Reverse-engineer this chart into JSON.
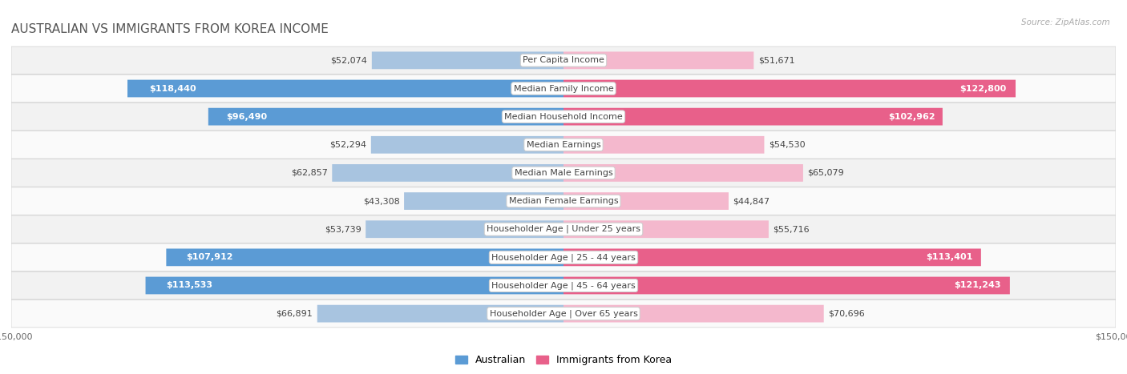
{
  "title": "AUSTRALIAN VS IMMIGRANTS FROM KOREA INCOME",
  "source": "Source: ZipAtlas.com",
  "categories": [
    "Per Capita Income",
    "Median Family Income",
    "Median Household Income",
    "Median Earnings",
    "Median Male Earnings",
    "Median Female Earnings",
    "Householder Age | Under 25 years",
    "Householder Age | 25 - 44 years",
    "Householder Age | 45 - 64 years",
    "Householder Age | Over 65 years"
  ],
  "australian_values": [
    52074,
    118440,
    96490,
    52294,
    62857,
    43308,
    53739,
    107912,
    113533,
    66891
  ],
  "korean_values": [
    51671,
    122800,
    102962,
    54530,
    65079,
    44847,
    55716,
    113401,
    121243,
    70696
  ],
  "australian_labels": [
    "$52,074",
    "$118,440",
    "$96,490",
    "$52,294",
    "$62,857",
    "$43,308",
    "$53,739",
    "$107,912",
    "$113,533",
    "$66,891"
  ],
  "korean_labels": [
    "$51,671",
    "$122,800",
    "$102,962",
    "$54,530",
    "$65,079",
    "$44,847",
    "$55,716",
    "$113,401",
    "$121,243",
    "$70,696"
  ],
  "max_value": 150000,
  "australian_color_light": "#a8c4e0",
  "australian_color_dark": "#5b9bd5",
  "korean_color_light": "#f4b8cd",
  "korean_color_dark": "#e8608a",
  "background_color": "#ffffff",
  "row_bg_even": "#f2f2f2",
  "row_bg_odd": "#fafafa",
  "label_dark_threshold": 80000,
  "bar_height": 0.62,
  "title_fontsize": 11,
  "label_fontsize": 8,
  "category_fontsize": 8,
  "legend_fontsize": 9,
  "axis_label_fontsize": 8
}
